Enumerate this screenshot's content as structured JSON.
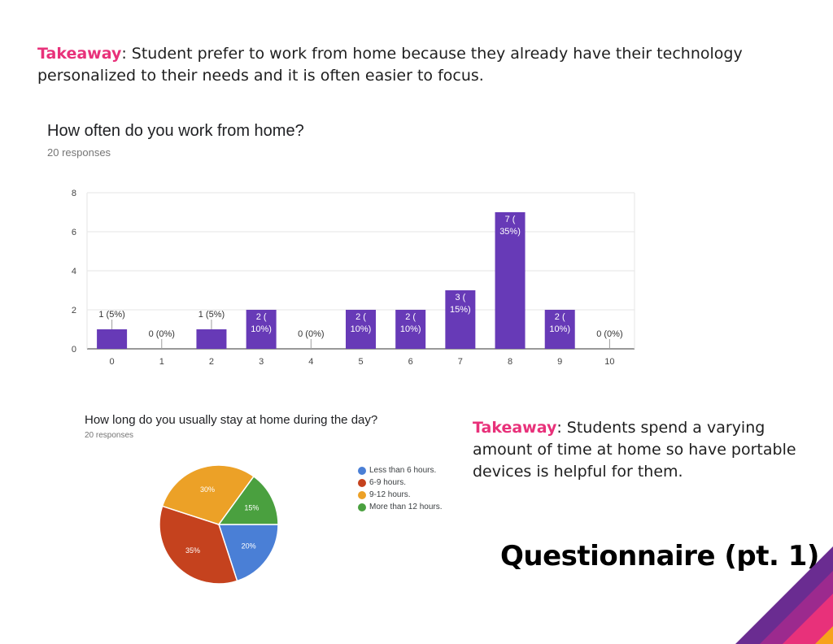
{
  "takeaway_top": {
    "label": "Takeaway",
    "text": ": Student prefer to work from home because they already have their technology personalized to their needs and it is often easier to focus."
  },
  "takeaway_bottom": {
    "label": "Takeaway",
    "text": ": Students spend a varying amount of time at home so have portable devices is helpful for them."
  },
  "page_title": "Questionnaire (pt. 1)",
  "colors": {
    "accent": "#e8317a",
    "bar": "#673ab7",
    "corner": [
      "#6a2c91",
      "#9c2a8e",
      "#e8317a",
      "#f7a21b"
    ]
  },
  "chart_data": [
    {
      "type": "bar",
      "title": "How often do you work from home?",
      "subtitle": "20 responses",
      "categories": [
        "0",
        "1",
        "2",
        "3",
        "4",
        "5",
        "6",
        "7",
        "8",
        "9",
        "10"
      ],
      "values": [
        1,
        0,
        1,
        2,
        0,
        2,
        2,
        3,
        7,
        2,
        0
      ],
      "data_labels": [
        [
          "1 (5%)"
        ],
        [
          "0 (0%)"
        ],
        [
          "1 (5%)"
        ],
        [
          "2 (",
          "10%)"
        ],
        [
          "0 (0%)"
        ],
        [
          "2 (",
          "10%)"
        ],
        [
          "2 (",
          "10%)"
        ],
        [
          "3 (",
          "15%)"
        ],
        [
          "7 (",
          "35%)"
        ],
        [
          "2 (",
          "10%)"
        ],
        [
          "0 (0%)"
        ]
      ],
      "ylim": [
        0,
        8
      ],
      "yticks": [
        "0",
        "2",
        "4",
        "6",
        "8"
      ],
      "grid": true
    },
    {
      "type": "pie",
      "title": "How long do you usually stay at home during the day?",
      "subtitle": "20 responses",
      "slices": [
        {
          "label": "Less than 6 hours.",
          "value": 20,
          "display": "20%",
          "color": "#4a7fd6"
        },
        {
          "label": "6-9 hours.",
          "value": 35,
          "display": "35%",
          "color": "#c5421e"
        },
        {
          "label": "9-12 hours.",
          "value": 30,
          "display": "30%",
          "color": "#eca127"
        },
        {
          "label": "More than 12 hours.",
          "value": 15,
          "display": "15%",
          "color": "#4aa03f"
        }
      ],
      "legend_position": "right"
    }
  ]
}
